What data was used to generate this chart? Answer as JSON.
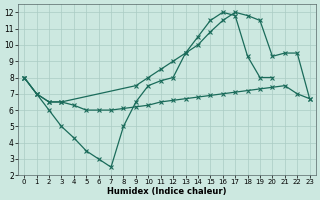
{
  "xlabel": "Humidex (Indice chaleur)",
  "background_color": "#cce8e0",
  "grid_color": "#aaccC4",
  "line_color": "#1a6b5a",
  "xlim": [
    -0.5,
    23.5
  ],
  "ylim": [
    2,
    12.5
  ],
  "xticks": [
    0,
    1,
    2,
    3,
    4,
    5,
    6,
    7,
    8,
    9,
    10,
    11,
    12,
    13,
    14,
    15,
    16,
    17,
    18,
    19,
    20,
    21,
    22,
    23
  ],
  "yticks": [
    2,
    3,
    4,
    5,
    6,
    7,
    8,
    9,
    10,
    11,
    12
  ],
  "line1_x": [
    0,
    1,
    2,
    3,
    4,
    5,
    6,
    7,
    8,
    9,
    10,
    11,
    12,
    13,
    14,
    15,
    16,
    17,
    18,
    19,
    20
  ],
  "line1_y": [
    8.0,
    7.0,
    6.0,
    5.0,
    4.3,
    3.5,
    3.0,
    2.5,
    5.0,
    6.5,
    7.5,
    7.8,
    8.0,
    9.5,
    10.5,
    11.5,
    12.0,
    11.8,
    9.3,
    8.0,
    8.0
  ],
  "line2_x": [
    0,
    1,
    2,
    3,
    4,
    5,
    6,
    7,
    8,
    9,
    10,
    11,
    12,
    13,
    14,
    15,
    16,
    17,
    18,
    19,
    20,
    21,
    22,
    23
  ],
  "line2_y": [
    8.0,
    7.0,
    6.5,
    6.5,
    6.3,
    6.0,
    6.0,
    6.0,
    6.1,
    6.2,
    6.3,
    6.5,
    6.6,
    6.7,
    6.8,
    6.9,
    7.0,
    7.1,
    7.2,
    7.3,
    7.4,
    7.5,
    7.0,
    6.7
  ],
  "line3_x": [
    0,
    1,
    2,
    3,
    9,
    10,
    11,
    12,
    13,
    14,
    15,
    16,
    17,
    18,
    19,
    20,
    21,
    22,
    23
  ],
  "line3_y": [
    8.0,
    7.0,
    6.5,
    6.5,
    7.5,
    8.0,
    8.5,
    9.0,
    9.5,
    10.0,
    10.8,
    11.5,
    12.0,
    11.8,
    11.5,
    9.3,
    9.5,
    9.5,
    6.7
  ]
}
